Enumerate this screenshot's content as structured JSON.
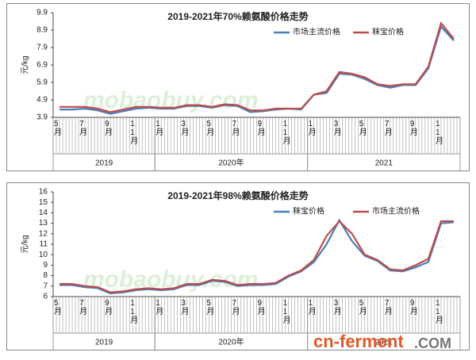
{
  "chart_data": [
    {
      "type": "line",
      "title": "2019-2021年70%赖氨酸价格走势",
      "y_label": "元/kg",
      "categories": [
        "5月",
        null,
        "7月",
        null,
        "9月",
        null,
        "11月",
        null,
        "1月",
        null,
        "3月",
        null,
        "5月",
        null,
        "7月",
        null,
        "9月",
        null,
        "11月",
        null,
        "1月",
        null,
        "3月",
        null,
        "5月",
        null,
        "7月",
        null,
        "9月",
        null,
        "11月",
        null
      ],
      "year_groups": [
        {
          "label": "2019",
          "months": 8
        },
        {
          "label": "2020年",
          "months": 12
        },
        {
          "label": "2021",
          "months": 12
        }
      ],
      "series": [
        {
          "name": "市场主流价格",
          "color": "#4a7ebb",
          "values": [
            4.35,
            4.35,
            4.4,
            4.3,
            4.1,
            4.25,
            4.4,
            4.45,
            4.4,
            4.4,
            4.55,
            4.55,
            4.45,
            4.6,
            4.55,
            4.2,
            4.25,
            4.35,
            4.4,
            4.35,
            5.2,
            5.3,
            6.4,
            6.35,
            6.1,
            5.75,
            5.6,
            5.75,
            5.75,
            6.7,
            9.1,
            8.3
          ]
        },
        {
          "name": "秣宝价格",
          "color": "#be4b48",
          "values": [
            4.5,
            4.5,
            4.5,
            4.4,
            4.2,
            4.35,
            4.5,
            4.5,
            4.45,
            4.45,
            4.6,
            4.6,
            4.5,
            4.65,
            4.6,
            4.3,
            4.3,
            4.4,
            4.4,
            4.4,
            5.2,
            5.4,
            6.5,
            6.4,
            6.2,
            5.8,
            5.7,
            5.8,
            5.8,
            6.8,
            9.3,
            8.4
          ]
        }
      ],
      "ylim": [
        3.9,
        9.9
      ],
      "yticks": [
        3.9,
        4.9,
        5.9,
        6.9,
        7.9,
        8.9,
        9.9
      ],
      "grid": false,
      "watermark": "mobaobuy.com"
    },
    {
      "type": "line",
      "title": "2019-2021年98%赖氨酸价格走势",
      "y_label": "元/kg",
      "categories": [
        "5月",
        null,
        "7月",
        null,
        "9月",
        null,
        "11月",
        null,
        "1月",
        null,
        "3月",
        null,
        "5月",
        null,
        "7月",
        null,
        "9月",
        null,
        "11月",
        null,
        "1月",
        null,
        "3月",
        null,
        "5月",
        null,
        "7月",
        null,
        "9月",
        null,
        "11月",
        null
      ],
      "year_groups": [
        {
          "label": "2019",
          "months": 8
        },
        {
          "label": "2020年",
          "months": 12
        },
        {
          "label": "2021",
          "months": 12
        }
      ],
      "series": [
        {
          "name": "秣宝价格",
          "color": "#4a7ebb",
          "values": [
            7.1,
            7.1,
            6.9,
            6.8,
            6.3,
            6.4,
            6.6,
            6.7,
            6.6,
            6.7,
            7.1,
            7.1,
            7.5,
            7.4,
            7.0,
            7.1,
            7.1,
            7.2,
            7.9,
            8.4,
            9.3,
            11.0,
            13.3,
            11.3,
            9.9,
            9.4,
            8.5,
            8.4,
            8.8,
            9.3,
            13.0,
            13.1
          ]
        },
        {
          "name": "市场主流价格",
          "color": "#be4b48",
          "values": [
            7.2,
            7.2,
            7.0,
            6.9,
            6.4,
            6.5,
            6.7,
            6.8,
            6.7,
            6.8,
            7.2,
            7.2,
            7.6,
            7.5,
            7.1,
            7.2,
            7.2,
            7.3,
            8.0,
            8.5,
            9.5,
            11.8,
            13.2,
            12.0,
            10.0,
            9.5,
            8.6,
            8.5,
            9.0,
            9.6,
            13.2,
            13.2
          ]
        }
      ],
      "ylim": [
        6,
        16
      ],
      "yticks": [
        6,
        7,
        8,
        9,
        10,
        11,
        12,
        13,
        14,
        15,
        16
      ],
      "grid": false,
      "watermark": "mobaobuy.com"
    }
  ],
  "site_logo": {
    "name": "cn-ferment",
    "suffix": ".COM"
  }
}
